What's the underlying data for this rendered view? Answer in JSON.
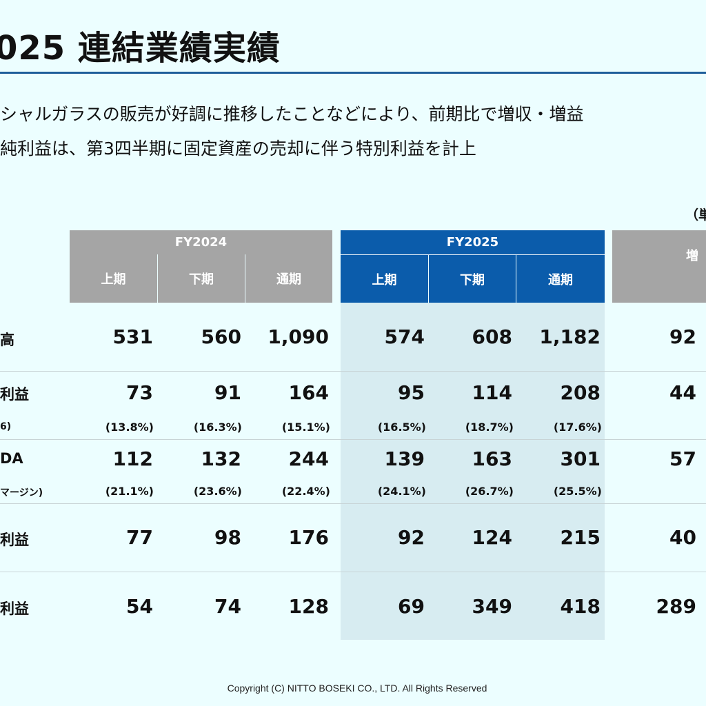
{
  "title": "025 連結業績実績",
  "lead_lines": [
    "シャルガラスの販売が好調に推移したことなどにより、前期比で増収・増益",
    "純利益は、第3四半期に固定資産の売却に伴う特別利益を計上"
  ],
  "unit_label": "（単",
  "table": {
    "fy2024_label": "FY2024",
    "fy2025_label": "FY2025",
    "change_label": "増",
    "sub_headers": [
      "上期",
      "下期",
      "通期"
    ],
    "rows": [
      {
        "label": "高",
        "values": [
          "531",
          "560",
          "1,090",
          "574",
          "608",
          "1,182"
        ],
        "change": "92"
      },
      {
        "label": "利益",
        "sublabel": "6)",
        "values": [
          "73",
          "91",
          "164",
          "95",
          "114",
          "208"
        ],
        "pct": [
          "(13.8%)",
          "(16.3%)",
          "(15.1%)",
          "(16.5%)",
          "(18.7%)",
          "(17.6%)"
        ],
        "change": "44"
      },
      {
        "label": "DA",
        "sublabel": "マージン)",
        "values": [
          "112",
          "132",
          "244",
          "139",
          "163",
          "301"
        ],
        "pct": [
          "(21.1%)",
          "(23.6%)",
          "(22.4%)",
          "(24.1%)",
          "(26.7%)",
          "(25.5%)"
        ],
        "change": "57"
      },
      {
        "label": "利益",
        "values": [
          "77",
          "98",
          "176",
          "92",
          "124",
          "215"
        ],
        "change": "40"
      },
      {
        "label": "利益",
        "values": [
          "54",
          "74",
          "128",
          "69",
          "349",
          "418"
        ],
        "change": "289"
      }
    ]
  },
  "footer": "Copyright (C)  NITTO BOSEKI CO., LTD. All Rights Reserved",
  "colors": {
    "background": "#ecfeff",
    "fy2024_header": "#a5a5a5",
    "fy2025_header": "#0b5cab",
    "fy2025_shade": "#d7ecf1",
    "title_rule": "#1e5e9a"
  }
}
